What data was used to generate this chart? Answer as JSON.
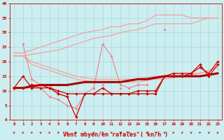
{
  "x": [
    0,
    1,
    2,
    3,
    4,
    5,
    6,
    7,
    8,
    9,
    10,
    11,
    12,
    13,
    14,
    15,
    16,
    17,
    18,
    19,
    20,
    21,
    22,
    23
  ],
  "smooth_upper1": [
    23,
    23,
    24,
    25,
    26,
    27,
    28,
    29,
    30,
    30.5,
    31,
    32,
    32,
    33,
    33,
    34,
    36,
    36,
    36,
    36,
    35,
    35,
    35,
    35
  ],
  "smooth_upper2": [
    22,
    22,
    22.5,
    23,
    23.5,
    24,
    25,
    26,
    27,
    28,
    28.5,
    29,
    30,
    30.5,
    31,
    32,
    33,
    33,
    33,
    33,
    33,
    34,
    35,
    35
  ],
  "smooth_lower1": [
    22,
    22,
    20,
    19,
    18,
    17,
    16,
    15,
    14.5,
    14,
    14,
    14,
    14,
    14,
    14,
    14.5,
    15,
    15,
    15,
    15,
    16,
    16,
    17,
    18
  ],
  "smooth_lower2": [
    22,
    22,
    19,
    18,
    17,
    16,
    15,
    14,
    13.5,
    13,
    13,
    13,
    13,
    13,
    13,
    13.5,
    14,
    14,
    14.5,
    15,
    15.5,
    16,
    17,
    18
  ],
  "pink_jagged1": [
    null,
    26,
    14,
    12,
    12,
    9,
    8,
    null,
    9,
    11,
    26,
    22,
    12,
    11,
    12,
    12,
    null,
    31,
    null,
    null,
    null,
    null,
    null,
    null
  ],
  "pink_jagged2": [
    null,
    null,
    12,
    11,
    8,
    7,
    5,
    4,
    9,
    null,
    12,
    null,
    11,
    null,
    null,
    null,
    null,
    null,
    null,
    null,
    null,
    null,
    null,
    null
  ],
  "dark_jagged1": [
    11,
    15,
    11,
    11,
    11,
    9,
    8,
    1,
    9,
    9,
    11,
    9,
    9,
    9,
    9,
    9,
    9,
    15,
    16,
    16,
    16,
    19,
    15,
    19
  ],
  "dark_jagged2": [
    11,
    11,
    12,
    12,
    11,
    10,
    9,
    9,
    9,
    9,
    9,
    9,
    9,
    9,
    10,
    10,
    10,
    15,
    15,
    15,
    16,
    18,
    16,
    20
  ],
  "dark_trend": [
    11,
    11,
    11.5,
    12,
    12,
    12,
    12,
    12.5,
    13,
    13,
    13,
    13,
    13,
    13.5,
    14,
    14,
    14.5,
    15,
    15,
    15,
    15,
    15,
    15.5,
    16
  ],
  "xlabel": "Vent moyen/en rafales ( kn/h )",
  "ylim": [
    0,
    40
  ],
  "xlim": [
    -0.5,
    23.5
  ],
  "yticks": [
    0,
    5,
    10,
    15,
    20,
    25,
    30,
    35,
    40
  ],
  "xticks": [
    0,
    1,
    2,
    3,
    4,
    5,
    6,
    7,
    8,
    9,
    10,
    11,
    12,
    13,
    14,
    15,
    16,
    17,
    18,
    19,
    20,
    21,
    22,
    23
  ],
  "bg_color": "#cceef0",
  "grid_color": "#aad8da",
  "color_light": "#f5a0a0",
  "color_mid": "#f08080",
  "color_dark": "#cc0000",
  "color_thick": "#aa0000"
}
